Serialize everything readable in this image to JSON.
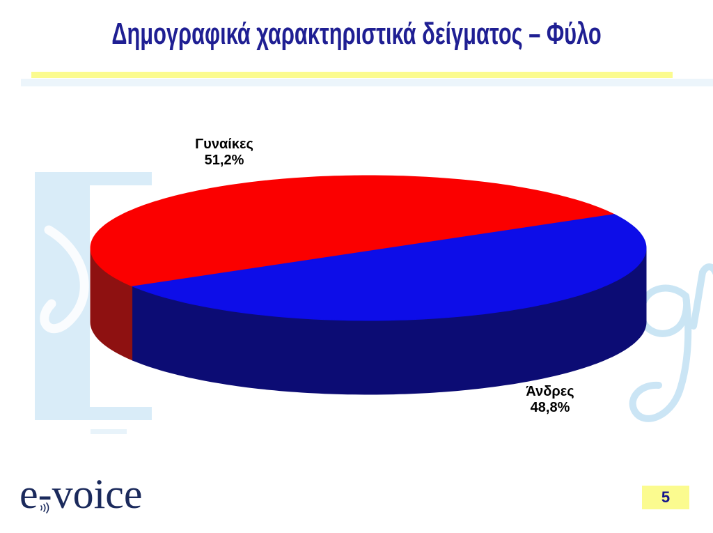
{
  "slide": {
    "title": "Δημογραφικά χαρακτηριστικά δείγματος – Φύλο",
    "page_number": "5",
    "logo_text": "e-voice",
    "accent_yellow": "#FBFB8F",
    "title_color": "#1F1F93",
    "watermark_color": "#D9ECF8"
  },
  "chart_data": {
    "type": "pie",
    "is_3d": true,
    "title": "",
    "legend": "none",
    "start_angle_deg": 148,
    "slices": [
      {
        "label": "Γυναίκες",
        "value": 51.2,
        "value_display": "51,2%",
        "color": "#FB0000",
        "side_color": "#8E1111"
      },
      {
        "label": "Άνδρες",
        "value": 48.8,
        "value_display": "48,8%",
        "color": "#0D0DE8",
        "side_color": "#0C0C74"
      }
    ]
  }
}
